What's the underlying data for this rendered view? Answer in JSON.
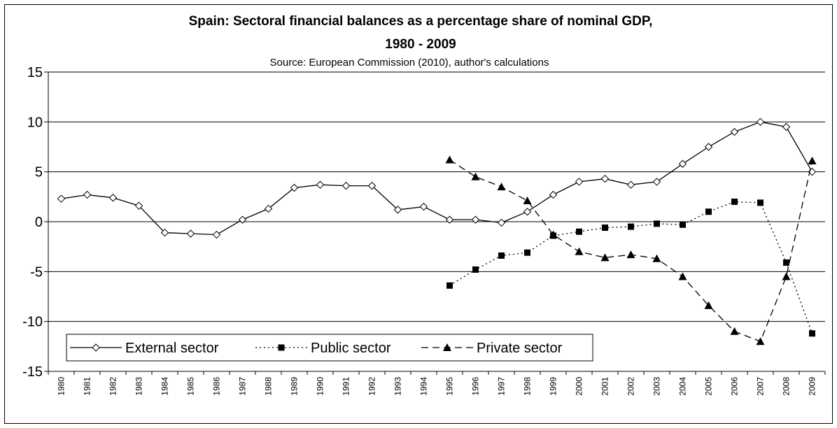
{
  "chart_data": {
    "type": "line",
    "title_line1": "Spain: Sectoral financial balances as a percentage share of nominal GDP,",
    "title_line2": "1980 - 2009",
    "subtitle": "Source: European Commission (2010), author's calculations",
    "xlabel": "",
    "ylabel": "",
    "ylim": [
      -15,
      15
    ],
    "yticks": [
      "15",
      "10",
      "5",
      "0",
      "-5",
      "-10",
      "-15"
    ],
    "grid": true,
    "legend_position": "bottom-left",
    "categories": [
      "1980",
      "1981",
      "1982",
      "1983",
      "1984",
      "1985",
      "1986",
      "1987",
      "1988",
      "1989",
      "1990",
      "1991",
      "1992",
      "1993",
      "1994",
      "1995",
      "1996",
      "1997",
      "1998",
      "1999",
      "2000",
      "2001",
      "2002",
      "2003",
      "2004",
      "2005",
      "2006",
      "2007",
      "2008",
      "2009"
    ],
    "series": [
      {
        "name": "External sector",
        "marker": "diamond-open",
        "line_style": "solid",
        "values": [
          2.3,
          2.7,
          2.4,
          1.6,
          -1.1,
          -1.2,
          -1.3,
          0.2,
          1.3,
          3.4,
          3.7,
          3.6,
          3.6,
          1.2,
          1.5,
          0.2,
          0.2,
          -0.1,
          1.0,
          2.7,
          4.0,
          4.3,
          3.7,
          4.0,
          5.8,
          7.5,
          9.0,
          10.0,
          9.5,
          5.0
        ]
      },
      {
        "name": "Public sector",
        "marker": "square-filled",
        "line_style": "dotted",
        "values": [
          null,
          null,
          null,
          null,
          null,
          null,
          null,
          null,
          null,
          null,
          null,
          null,
          null,
          null,
          null,
          -6.4,
          -4.8,
          -3.4,
          -3.1,
          -1.4,
          -1.0,
          -0.6,
          -0.5,
          -0.2,
          -0.3,
          1.0,
          2.0,
          1.9,
          -4.1,
          -11.2
        ]
      },
      {
        "name": "Private sector",
        "marker": "triangle-filled",
        "line_style": "dashed",
        "values": [
          null,
          null,
          null,
          null,
          null,
          null,
          null,
          null,
          null,
          null,
          null,
          null,
          null,
          null,
          null,
          6.2,
          4.5,
          3.5,
          2.1,
          -1.3,
          -3.0,
          -3.6,
          -3.3,
          -3.7,
          -5.5,
          -8.4,
          -11.0,
          -12.0,
          -5.5,
          6.1
        ]
      }
    ]
  }
}
